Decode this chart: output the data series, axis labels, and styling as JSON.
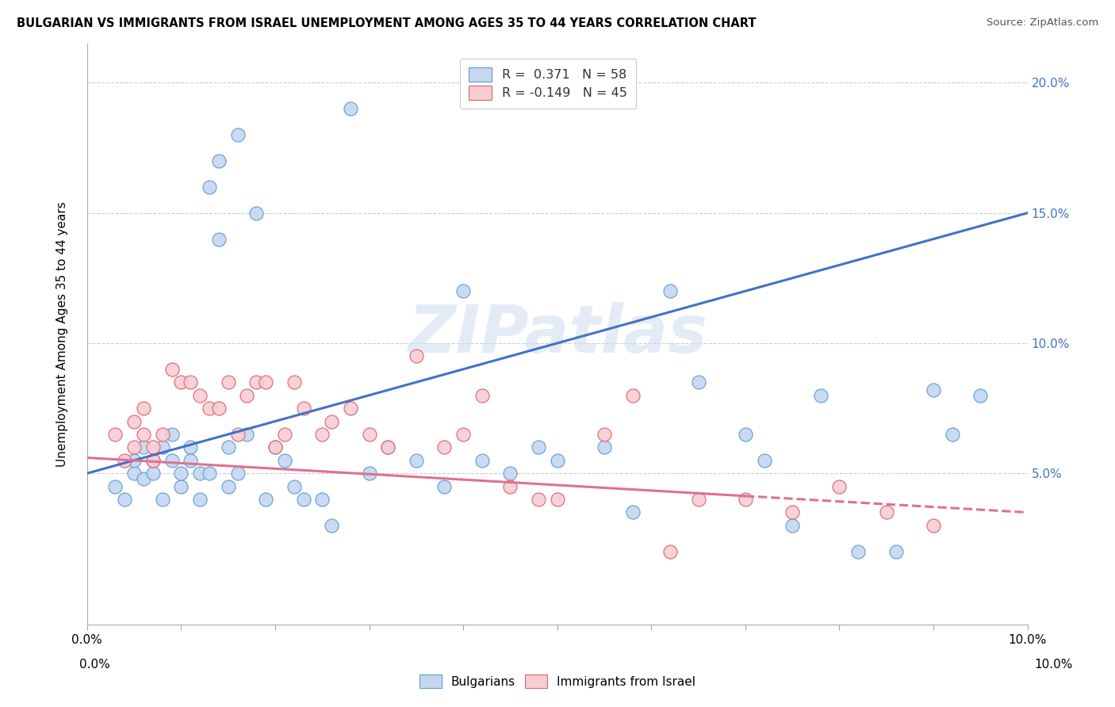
{
  "title": "BULGARIAN VS IMMIGRANTS FROM ISRAEL UNEMPLOYMENT AMONG AGES 35 TO 44 YEARS CORRELATION CHART",
  "source": "Source: ZipAtlas.com",
  "ylabel": "Unemployment Among Ages 35 to 44 years",
  "xlim": [
    0,
    0.1
  ],
  "ylim": [
    -0.008,
    0.215
  ],
  "yticks": [
    0.0,
    0.05,
    0.1,
    0.15,
    0.2
  ],
  "legend_r_blue": "R =  0.371",
  "legend_n_blue": "N = 58",
  "legend_r_pink": "R = -0.149",
  "legend_n_pink": "N = 45",
  "blue_fill": "#c5d8f0",
  "pink_fill": "#f7cdd3",
  "blue_edge": "#5b9bd5",
  "pink_edge": "#e06070",
  "blue_line": "#4472c4",
  "pink_line": "#e07090",
  "watermark_text": "ZIPatlas",
  "blue_scatter_x": [
    0.003,
    0.004,
    0.005,
    0.005,
    0.006,
    0.006,
    0.007,
    0.007,
    0.008,
    0.008,
    0.009,
    0.009,
    0.01,
    0.01,
    0.011,
    0.011,
    0.012,
    0.012,
    0.013,
    0.013,
    0.014,
    0.014,
    0.015,
    0.015,
    0.016,
    0.016,
    0.017,
    0.018,
    0.019,
    0.02,
    0.021,
    0.022,
    0.023,
    0.025,
    0.026,
    0.028,
    0.03,
    0.032,
    0.035,
    0.038,
    0.04,
    0.042,
    0.045,
    0.048,
    0.05,
    0.055,
    0.058,
    0.062,
    0.065,
    0.07,
    0.072,
    0.075,
    0.078,
    0.082,
    0.086,
    0.09,
    0.092,
    0.095
  ],
  "blue_scatter_y": [
    0.045,
    0.04,
    0.05,
    0.055,
    0.048,
    0.06,
    0.05,
    0.055,
    0.04,
    0.06,
    0.055,
    0.065,
    0.045,
    0.05,
    0.06,
    0.055,
    0.04,
    0.05,
    0.16,
    0.05,
    0.17,
    0.14,
    0.06,
    0.045,
    0.18,
    0.05,
    0.065,
    0.15,
    0.04,
    0.06,
    0.055,
    0.045,
    0.04,
    0.04,
    0.03,
    0.19,
    0.05,
    0.06,
    0.055,
    0.045,
    0.12,
    0.055,
    0.05,
    0.06,
    0.055,
    0.06,
    0.035,
    0.12,
    0.085,
    0.065,
    0.055,
    0.03,
    0.08,
    0.02,
    0.02,
    0.082,
    0.065,
    0.08
  ],
  "pink_scatter_x": [
    0.003,
    0.004,
    0.005,
    0.005,
    0.006,
    0.006,
    0.007,
    0.007,
    0.008,
    0.009,
    0.01,
    0.011,
    0.012,
    0.013,
    0.014,
    0.015,
    0.016,
    0.017,
    0.018,
    0.019,
    0.02,
    0.021,
    0.022,
    0.023,
    0.025,
    0.026,
    0.028,
    0.03,
    0.032,
    0.035,
    0.038,
    0.04,
    0.042,
    0.045,
    0.048,
    0.05,
    0.055,
    0.058,
    0.062,
    0.065,
    0.07,
    0.075,
    0.08,
    0.085,
    0.09
  ],
  "pink_scatter_y": [
    0.065,
    0.055,
    0.06,
    0.07,
    0.075,
    0.065,
    0.06,
    0.055,
    0.065,
    0.09,
    0.085,
    0.085,
    0.08,
    0.075,
    0.075,
    0.085,
    0.065,
    0.08,
    0.085,
    0.085,
    0.06,
    0.065,
    0.085,
    0.075,
    0.065,
    0.07,
    0.075,
    0.065,
    0.06,
    0.095,
    0.06,
    0.065,
    0.08,
    0.045,
    0.04,
    0.04,
    0.065,
    0.08,
    0.02,
    0.04,
    0.04,
    0.035,
    0.045,
    0.035,
    0.03
  ],
  "blue_line_x0": 0.0,
  "blue_line_y0": 0.05,
  "blue_line_x1": 0.1,
  "blue_line_y1": 0.15,
  "pink_line_x0": 0.0,
  "pink_line_y0": 0.056,
  "pink_line_x1": 0.1,
  "pink_line_y1": 0.035
}
